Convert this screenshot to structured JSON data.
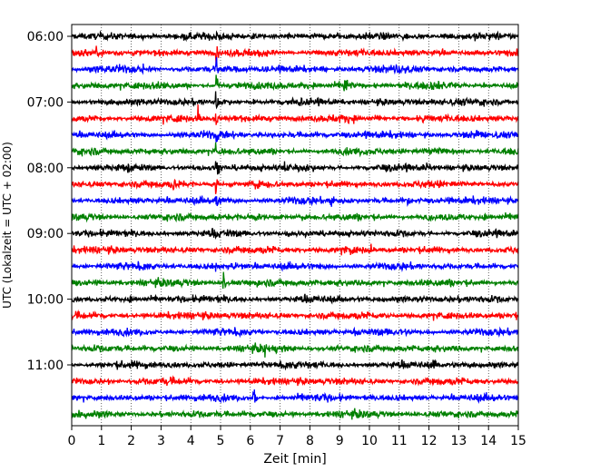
{
  "chart_data": {
    "type": "line",
    "title": "",
    "xlabel": "Zeit  [min]",
    "ylabel": "UTC (Lokalzeit = UTC + 02:00)",
    "xlim": [
      0,
      15
    ],
    "x_ticks": [
      0,
      1,
      2,
      3,
      4,
      5,
      6,
      7,
      8,
      9,
      10,
      11,
      12,
      13,
      14,
      15
    ],
    "x_tick_labels": [
      "0",
      "1",
      "2",
      "3",
      "4",
      "5",
      "6",
      "7",
      "8",
      "9",
      "10",
      "11",
      "12",
      "13",
      "14",
      "15"
    ],
    "y_tick_labels": [
      {
        "label": "06:00",
        "trace_index": 0
      },
      {
        "label": "07:00",
        "trace_index": 4
      },
      {
        "label": "08:00",
        "trace_index": 8
      },
      {
        "label": "09:00",
        "trace_index": 12
      },
      {
        "label": "10:00",
        "trace_index": 16
      },
      {
        "label": "11:00",
        "trace_index": 20
      }
    ],
    "grid": "vertical dotted",
    "legend": "none",
    "trace_colors": [
      "#000000",
      "#ff0000",
      "#0000ff",
      "#008000"
    ],
    "traces": [
      {
        "start": "06:00",
        "color": "#000000",
        "events": [
          {
            "t": 4.85,
            "amp": 14
          },
          {
            "t": 6.1,
            "amp": 4
          },
          {
            "t": 11.2,
            "amp": 5
          }
        ]
      },
      {
        "start": "06:15",
        "color": "#ff0000",
        "events": [
          {
            "t": 4.85,
            "amp": 14
          },
          {
            "t": 6.1,
            "amp": 4
          }
        ]
      },
      {
        "start": "06:30",
        "color": "#0000ff",
        "events": [
          {
            "t": 4.85,
            "amp": 14
          },
          {
            "t": 2.4,
            "amp": 4
          },
          {
            "t": 8.4,
            "amp": 7
          },
          {
            "t": 10.9,
            "amp": 6
          }
        ]
      },
      {
        "start": "06:45",
        "color": "#008000",
        "events": [
          {
            "t": 4.85,
            "amp": 14
          },
          {
            "t": 9.15,
            "amp": 22
          },
          {
            "t": 12.5,
            "amp": 5
          }
        ]
      },
      {
        "start": "07:00",
        "color": "#000000",
        "events": [
          {
            "t": 4.85,
            "amp": 14
          },
          {
            "t": 6.1,
            "amp": 5
          },
          {
            "t": 7.4,
            "amp": 5
          }
        ]
      },
      {
        "start": "07:15",
        "color": "#ff0000",
        "events": [
          {
            "t": 4.25,
            "amp": 20
          },
          {
            "t": 4.85,
            "amp": 14
          },
          {
            "t": 11.8,
            "amp": 6
          }
        ]
      },
      {
        "start": "07:30",
        "color": "#0000ff",
        "events": [
          {
            "t": 4.85,
            "amp": 14
          },
          {
            "t": 13.6,
            "amp": 5
          }
        ]
      },
      {
        "start": "07:45",
        "color": "#008000",
        "events": [
          {
            "t": 4.85,
            "amp": 14
          },
          {
            "t": 12.05,
            "amp": 8
          }
        ]
      },
      {
        "start": "08:00",
        "color": "#000000",
        "events": [
          {
            "t": 1.8,
            "amp": 5
          },
          {
            "t": 4.1,
            "amp": 5
          },
          {
            "t": 4.85,
            "amp": 14
          },
          {
            "t": 7.15,
            "amp": 5
          },
          {
            "t": 11.9,
            "amp": 6
          }
        ]
      },
      {
        "start": "08:15",
        "color": "#ff0000",
        "events": [
          {
            "t": 3.4,
            "amp": 8
          },
          {
            "t": 4.85,
            "amp": 14
          }
        ]
      },
      {
        "start": "08:30",
        "color": "#0000ff",
        "events": [
          {
            "t": 4.85,
            "amp": 14
          },
          {
            "t": 8.7,
            "amp": 12
          },
          {
            "t": 11.3,
            "amp": 6
          }
        ]
      },
      {
        "start": "08:45",
        "color": "#008000",
        "events": [
          {
            "t": 4.85,
            "amp": 5
          },
          {
            "t": 12.0,
            "amp": 5
          }
        ]
      },
      {
        "start": "09:00",
        "color": "#000000",
        "events": [
          {
            "t": 4.85,
            "amp": 5
          },
          {
            "t": 7.3,
            "amp": 4
          }
        ]
      },
      {
        "start": "09:15",
        "color": "#ff0000",
        "events": [
          {
            "t": 9.1,
            "amp": 5
          },
          {
            "t": 10.05,
            "amp": 6
          }
        ]
      },
      {
        "start": "09:30",
        "color": "#0000ff",
        "events": [
          {
            "t": 4.85,
            "amp": 5
          },
          {
            "t": 5.7,
            "amp": 5
          }
        ]
      },
      {
        "start": "09:45",
        "color": "#008000",
        "events": [
          {
            "t": 5.1,
            "amp": 12
          },
          {
            "t": 6.0,
            "amp": 4
          }
        ]
      },
      {
        "start": "10:00",
        "color": "#000000",
        "events": [
          {
            "t": 1.1,
            "amp": 4
          },
          {
            "t": 9.8,
            "amp": 4
          }
        ]
      },
      {
        "start": "10:15",
        "color": "#ff0000",
        "events": [
          {
            "t": 10.5,
            "amp": 4
          }
        ]
      },
      {
        "start": "10:30",
        "color": "#0000ff",
        "events": [
          {
            "t": 6.3,
            "amp": 4
          },
          {
            "t": 9.5,
            "amp": 5
          }
        ]
      },
      {
        "start": "10:45",
        "color": "#008000",
        "events": [
          {
            "t": 6.5,
            "amp": 14
          },
          {
            "t": 7.0,
            "amp": 5
          }
        ]
      },
      {
        "start": "11:00",
        "color": "#000000",
        "events": [
          {
            "t": 6.4,
            "amp": 6
          },
          {
            "t": 12.15,
            "amp": 10
          }
        ]
      },
      {
        "start": "11:15",
        "color": "#ff0000",
        "events": [
          {
            "t": 1.2,
            "amp": 4
          }
        ]
      },
      {
        "start": "11:30",
        "color": "#0000ff",
        "events": [
          {
            "t": 6.1,
            "amp": 18
          }
        ]
      },
      {
        "start": "11:45",
        "color": "#008000",
        "events": []
      }
    ]
  }
}
